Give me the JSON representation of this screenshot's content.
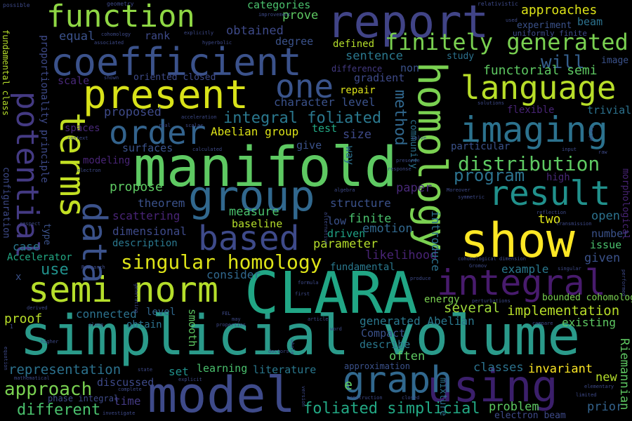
{
  "words": {
    "simplicial_volume": {
      "text": "simplicial volume",
      "color": "#2a9a8a"
    },
    "clara": {
      "text": "CLARA",
      "color": "#21a685"
    },
    "manifold": {
      "text": "manifold",
      "color": "#5ec962"
    },
    "model": {
      "text": "model",
      "color": "#3e4a89"
    },
    "show": {
      "text": "show",
      "color": "#fde725"
    },
    "present": {
      "text": "present",
      "color": "#d8e219"
    },
    "coefficient": {
      "text": "coefficient",
      "color": "#3b528b"
    },
    "report": {
      "text": "report",
      "color": "#414487"
    },
    "function": {
      "text": "function",
      "color": "#8fd744"
    },
    "group": {
      "text": "group",
      "color": "#31688e"
    },
    "homology": {
      "text": "homology",
      "color": "#7ad151"
    },
    "semi_norm": {
      "text": "semi norm",
      "color": "#b5de2b"
    },
    "using": {
      "text": "using",
      "color": "#3b1f6b"
    },
    "graph": {
      "text": "graph",
      "color": "#31688e"
    },
    "data": {
      "text": "data",
      "color": "#3b528b"
    },
    "terms": {
      "text": "terms",
      "color": "#c2df23"
    },
    "potential": {
      "text": "potential",
      "color": "#443a83"
    },
    "imaging": {
      "text": "imaging",
      "color": "#2c728e"
    },
    "language": {
      "text": "language",
      "color": "#b8de29"
    },
    "integral": {
      "text": "integral",
      "color": "#481b6d"
    },
    "result": {
      "text": "result",
      "color": "#21918c"
    },
    "based": {
      "text": "based",
      "color": "#3e4a89"
    },
    "order": {
      "text": "order",
      "color": "#33638d"
    },
    "one": {
      "text": "one",
      "color": "#3a548c"
    },
    "finitely_generated": {
      "text": "finitely generated",
      "color": "#7ad151"
    },
    "singular_homology": {
      "text": "singular homology",
      "color": "#dde318"
    },
    "distribution": {
      "text": "distribution",
      "color": "#5ec962"
    },
    "program": {
      "text": "program",
      "color": "#2c728e"
    },
    "will": {
      "text": "will",
      "color": "#355f8d"
    },
    "integral_foliated": {
      "text": "integral foliated",
      "color": "#2a788e"
    },
    "approach": {
      "text": "approach",
      "color": "#7ad151"
    },
    "different": {
      "text": "different",
      "color": "#4ac16d"
    },
    "foliated_simplicial": {
      "text": "foliated simplicial",
      "color": "#22a884"
    },
    "method": {
      "text": "method",
      "color": "#31688e"
    },
    "functorial_semi": {
      "text": "functorial semi",
      "color": "#5ec962"
    },
    "approaches": {
      "text": "approaches",
      "color": "#dde318"
    },
    "implementation": {
      "text": "implementation",
      "color": "#b8de29"
    },
    "several": {
      "text": "several",
      "color": "#9fda3a"
    },
    "representation": {
      "text": "representation",
      "color": "#2c728e"
    },
    "sentence": {
      "text": "sentence",
      "color": "#2a788e"
    },
    "equal": {
      "text": "equal",
      "color": "#3b528b"
    },
    "obtained": {
      "text": "obtained",
      "color": "#3e4a89"
    },
    "prove": {
      "text": "prove",
      "color": "#5ec962"
    },
    "categories": {
      "text": "categories",
      "color": "#4ac16d"
    },
    "problem": {
      "text": "problem",
      "color": "#5ec962"
    },
    "prior": {
      "text": "prior",
      "color": "#33638d"
    },
    "new": {
      "text": "new",
      "color": "#b5de2b"
    },
    "classes": {
      "text": "classes",
      "color": "#2c728e"
    },
    "invariant": {
      "text": "invariant",
      "color": "#fde725"
    },
    "riemannian": {
      "text": "Riemannian",
      "color": "#5ec962"
    },
    "bounded_cohomology": {
      "text": "bounded cohomology",
      "color": "#7ad151"
    },
    "existing": {
      "text": "existing",
      "color": "#5ec962"
    },
    "energy": {
      "text": "energy",
      "color": "#7ad151"
    },
    "example": {
      "text": "example",
      "color": "#2a788e"
    },
    "given": {
      "text": "given",
      "color": "#3b528b"
    },
    "issue": {
      "text": "issue",
      "color": "#4ac16d"
    },
    "number": {
      "text": "number",
      "color": "#3b528b"
    },
    "likelihood": {
      "text": "likelihood",
      "color": "#482475"
    },
    "fundamental": {
      "text": "fundamental",
      "color": "#2a788e"
    },
    "parameter": {
      "text": "parameter",
      "color": "#b5de2b"
    },
    "emotion": {
      "text": "emotion",
      "color": "#31688e"
    },
    "finite": {
      "text": "finite",
      "color": "#4ac16d"
    },
    "driven": {
      "text": "driven",
      "color": "#20a386"
    },
    "low": {
      "text": "low",
      "color": "#3b528b"
    },
    "structure": {
      "text": "structure",
      "color": "#3b528b"
    },
    "paper": {
      "text": "paper",
      "color": "#482878"
    },
    "measure": {
      "text": "measure",
      "color": "#4ac16d"
    },
    "baseline": {
      "text": "baseline",
      "color": "#b5de2b"
    },
    "theorem": {
      "text": "theorem",
      "color": "#3b528b"
    },
    "propose": {
      "text": "propose",
      "color": "#5ec962"
    },
    "scattering": {
      "text": "scattering",
      "color": "#482475"
    },
    "dimensional": {
      "text": "dimensional",
      "color": "#3e4a89"
    },
    "description": {
      "text": "description",
      "color": "#2a788e"
    },
    "consider": {
      "text": "consider",
      "color": "#31688e"
    },
    "use": {
      "text": "use",
      "color": "#21918c"
    },
    "case": {
      "text": "case",
      "color": "#2a788e"
    },
    "accelerator": {
      "text": "Accelerator",
      "color": "#22a884"
    },
    "connected": {
      "text": "connected",
      "color": "#2c728e"
    },
    "proof": {
      "text": "proof",
      "color": "#b8de29"
    },
    "obtain": {
      "text": "obtain",
      "color": "#2c728e"
    },
    "level": {
      "text": "level",
      "color": "#31688e"
    },
    "smooth": {
      "text": "smooth",
      "color": "#5ec962"
    },
    "set": {
      "text": "set",
      "color": "#21918c"
    },
    "learning": {
      "text": "learning",
      "color": "#4ac16d"
    },
    "literature": {
      "text": "literature",
      "color": "#2a788e"
    },
    "discussed": {
      "text": "discussed",
      "color": "#3e4a89"
    },
    "time": {
      "text": "time",
      "color": "#443a83"
    },
    "approximation": {
      "text": "approximation",
      "color": "#3b528b"
    },
    "often": {
      "text": "often",
      "color": "#5ec962"
    },
    "describe": {
      "text": "describe",
      "color": "#2a788e"
    },
    "compact": {
      "text": "Compact",
      "color": "#3b528b"
    },
    "generated_abelian": {
      "text": "generated Abelian",
      "color": "#2a788e"
    },
    "two": {
      "text": "two",
      "color": "#dde318"
    },
    "open": {
      "text": "open",
      "color": "#2c728e"
    },
    "high": {
      "text": "high",
      "color": "#482878"
    },
    "introduce": {
      "text": "introduce",
      "color": "#2c728e"
    },
    "particular": {
      "text": "particular",
      "color": "#3b528b"
    },
    "trivial": {
      "text": "trivial",
      "color": "#2c728e"
    },
    "flexible": {
      "text": "flexible",
      "color": "#482475"
    },
    "character_level": {
      "text": "character level",
      "color": "#3b528b"
    },
    "abelian_group": {
      "text": "Abelian group",
      "color": "#dde318"
    },
    "test": {
      "text": "test",
      "color": "#22a884"
    },
    "size": {
      "text": "size",
      "color": "#3e4a89"
    },
    "give": {
      "text": "give",
      "color": "#3b528b"
    },
    "way": {
      "text": "way",
      "color": "#2c728e"
    },
    "surfaces": {
      "text": "surfaces",
      "color": "#3b528b"
    },
    "spaces": {
      "text": "spaces",
      "color": "#482878"
    },
    "proposed": {
      "text": "proposed",
      "color": "#3e4a89"
    },
    "modeling": {
      "text": "modeling",
      "color": "#482475"
    },
    "scale": {
      "text": "scale",
      "color": "#482878"
    },
    "oriented_closed": {
      "text": "oriented closed",
      "color": "#3e4a89"
    },
    "repair": {
      "text": "repair",
      "color": "#dde318"
    },
    "gradient": {
      "text": "gradient",
      "color": "#3e4a89"
    },
    "difference": {
      "text": "difference",
      "color": "#443a83"
    },
    "non": {
      "text": "non",
      "color": "#3b528b"
    },
    "defined": {
      "text": "defined",
      "color": "#b5de2b"
    },
    "degree": {
      "text": "degree",
      "color": "#3b528b"
    },
    "rank": {
      "text": "rank",
      "color": "#3e4a89"
    },
    "study": {
      "text": "study",
      "color": "#2c728e"
    },
    "image": {
      "text": "image",
      "color": "#3b528b"
    },
    "experiment": {
      "text": "experiment",
      "color": "#3b528b"
    },
    "beam": {
      "text": "beam",
      "color": "#2c728e"
    },
    "uniformly_finite": {
      "text": "uniformly finite",
      "color": "#3e4a89"
    },
    "proportionality_principle": {
      "text": "proportionality principle",
      "color": "#3e4a89"
    },
    "configuration": {
      "text": "configuration",
      "color": "#3e4a89"
    },
    "fundamental_class": {
      "text": "fundamental class",
      "color": "#b5de2b"
    },
    "community": {
      "text": "community",
      "color": "#2c728e"
    },
    "type": {
      "text": "type",
      "color": "#3b528b"
    },
    "morphological": {
      "text": "morphological",
      "color": "#482475"
    },
    "phase_integral": {
      "text": "phase integral",
      "color": "#3e4a89"
    },
    "mixture": {
      "text": "mixture",
      "color": "#2c728e"
    },
    "e": {
      "text": "e",
      "color": "#5ec962"
    },
    "x": {
      "text": "x",
      "color": "#3b528b"
    },
    "electron_beam": {
      "text": "electron beam",
      "color": "#3e4a89"
    },
    "possible": {
      "text": "possible",
      "color": "#3e4a89"
    },
    "geometry": {
      "text": "geometry",
      "color": "#3e4a89"
    },
    "relativistic": {
      "text": "relativistic",
      "color": "#3e4a89"
    },
    "improvement": {
      "text": "improvement",
      "color": "#3e4a89"
    },
    "cohomology": {
      "text": "cohomology",
      "color": "#3e4a89"
    },
    "associated": {
      "text": "associated",
      "color": "#3e4a89"
    },
    "explicitly": {
      "text": "explicitly",
      "color": "#3e4a89"
    },
    "hyperbolic": {
      "text": "hyperbolic",
      "color": "#3e4a89"
    },
    "used": {
      "text": "used",
      "color": "#3e4a89"
    },
    "cohomological_dimension": {
      "text": "cohomological dimension",
      "color": "#3e4a89"
    },
    "solutions": {
      "text": "solutions",
      "color": "#3e4a89"
    },
    "acceleration": {
      "text": "acceleration",
      "color": "#3e4a89"
    },
    "context": {
      "text": "context",
      "color": "#3e4a89"
    },
    "calculated": {
      "text": "calculated",
      "color": "#3e4a89"
    },
    "solve": {
      "text": "solve",
      "color": "#3e4a89"
    },
    "response": {
      "text": "response",
      "color": "#3e4a89"
    },
    "presence": {
      "text": "presence",
      "color": "#3e4a89"
    },
    "input": {
      "text": "input",
      "color": "#3e4a89"
    },
    "raw": {
      "text": "raw",
      "color": "#3e4a89"
    },
    "large": {
      "text": "large",
      "color": "#3e4a89"
    },
    "electron": {
      "text": "electron",
      "color": "#3e4a89"
    },
    "algebra": {
      "text": "algebra",
      "color": "#3e4a89"
    },
    "moreover": {
      "text": "Moreover",
      "color": "#3e4a89"
    },
    "symmetric": {
      "text": "symmetric",
      "color": "#3e4a89"
    },
    "reflection": {
      "text": "reflection",
      "color": "#3e4a89"
    },
    "transmission": {
      "text": "transmission",
      "color": "#3e4a89"
    },
    "respect": {
      "text": "respect",
      "color": "#3e4a89"
    },
    "alternative": {
      "text": "alternative",
      "color": "#3e4a89"
    },
    "research": {
      "text": "Research",
      "color": "#3e4a89"
    },
    "formula": {
      "text": "formula",
      "color": "#3e4a89"
    },
    "produce": {
      "text": "produce",
      "color": "#3e4a89"
    },
    "first": {
      "text": "first",
      "color": "#3e4a89"
    },
    "gromov": {
      "text": "Gromov",
      "color": "#3e4a89"
    },
    "singular": {
      "text": "singular",
      "color": "#3e4a89"
    },
    "performed": {
      "text": "performed",
      "color": "#3e4a89"
    },
    "derived": {
      "text": "derived",
      "color": "#3e4a89"
    },
    "fel": {
      "text": "FEL",
      "color": "#3e4a89"
    },
    "may": {
      "text": "may",
      "color": "#3e4a89"
    },
    "perturbations": {
      "text": "perturbations",
      "color": "#3e4a89"
    },
    "article": {
      "text": "article",
      "color": "#3e4a89"
    },
    "along": {
      "text": "along",
      "color": "#3e4a89"
    },
    "properties": {
      "text": "properties",
      "color": "#3e4a89"
    },
    "word": {
      "text": "word",
      "color": "#3e4a89"
    },
    "compare": {
      "text": "compare",
      "color": "#3e4a89"
    },
    "higher": {
      "text": "higher",
      "color": "#3e4a89"
    },
    "doctors": {
      "text": "doctors",
      "color": "#3e4a89"
    },
    "whole": {
      "text": "whole",
      "color": "#3e4a89"
    },
    "elementary": {
      "text": "elementary",
      "color": "#3e4a89"
    },
    "limited": {
      "text": "limited",
      "color": "#3e4a89"
    },
    "equation": {
      "text": "equation",
      "color": "#3e4a89"
    },
    "mathematical": {
      "text": "mathematical",
      "color": "#3e4a89"
    },
    "state": {
      "text": "state",
      "color": "#3e4a89"
    },
    "explicit": {
      "text": "explicit",
      "color": "#3e4a89"
    },
    "complete": {
      "text": "complete",
      "color": "#3e4a89"
    },
    "investigate": {
      "text": "investigate",
      "color": "#3e4a89"
    },
    "construction": {
      "text": "construction",
      "color": "#3e4a89"
    },
    "closed": {
      "text": "closed",
      "color": "#3e4a89"
    },
    "version": {
      "text": "version",
      "color": "#3e4a89"
    },
    "real": {
      "text": "real",
      "color": "#3e4a89"
    },
    "scalar": {
      "text": "scalar",
      "color": "#3e4a89"
    },
    "shown": {
      "text": "shown",
      "color": "#3e4a89"
    },
    "generating": {
      "text": "generating",
      "color": "#3e4a89"
    },
    "one_small": {
      "text": "1",
      "color": "#3e4a89"
    }
  }
}
